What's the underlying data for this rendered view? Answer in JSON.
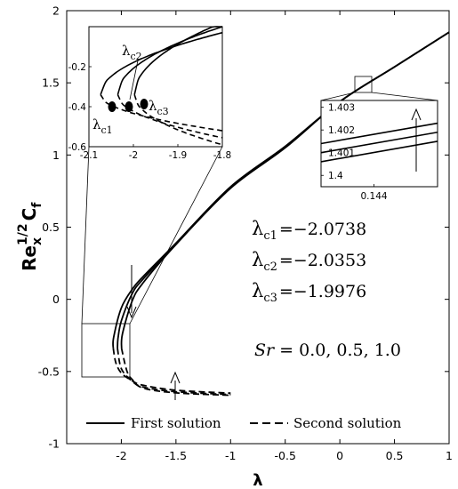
{
  "chart_data": [
    {
      "type": "line",
      "xlabel": "λ",
      "ylabel_base": "Re",
      "ylabel_sub": "x",
      "ylabel_sup": "1/2",
      "ylabel_main": "C",
      "ylabel_main_sub": "f",
      "xlim": [
        -2.5,
        1
      ],
      "ylim": [
        -1,
        2
      ],
      "xticks": [
        -2,
        -1.5,
        -1,
        -0.5,
        0,
        0.5,
        1
      ],
      "xtick_labels": [
        "-2",
        "-1.5",
        "-1",
        "-0.5",
        "0",
        "0.5",
        "1"
      ],
      "yticks": [
        -1,
        -0.5,
        0,
        0.5,
        1,
        1.5,
        2
      ],
      "ytick_labels": [
        "-1",
        "-0.5",
        "0",
        "0.5",
        "1",
        "1.5",
        "2"
      ],
      "grid": false,
      "legend": {
        "placement": "bottom",
        "entries": [
          {
            "label": "First solution",
            "style": "solid"
          },
          {
            "label": "Second solution",
            "style": "dashed"
          }
        ]
      },
      "series": [
        {
          "style": "solid",
          "x": [
            -2.0738,
            -2.07,
            -2.0,
            -1.9,
            -1.8,
            -1.5,
            -1.0,
            -0.5,
            0.0,
            0.5,
            1.0
          ],
          "y": [
            -0.34,
            -0.263,
            -0.06,
            0.07,
            0.158,
            0.39,
            0.78,
            1.06,
            1.37,
            1.61,
            1.85
          ]
        },
        {
          "style": "solid",
          "x": [
            -2.0353,
            -2.03,
            -2.0,
            -1.9,
            -1.8,
            -1.5,
            -1.0,
            -0.5,
            0.0,
            0.5,
            1.0
          ],
          "y": [
            -0.34,
            -0.269,
            -0.15,
            0.04,
            0.141,
            0.385,
            0.775,
            1.055,
            1.37,
            1.61,
            1.85
          ]
        },
        {
          "style": "solid",
          "x": [
            -1.9976,
            -1.99,
            -1.9,
            -1.8,
            -1.5,
            -1.0,
            -0.5,
            0.0,
            0.5,
            1.0
          ],
          "y": [
            -0.34,
            -0.239,
            -0.01,
            0.115,
            0.38,
            0.77,
            1.05,
            1.37,
            1.61,
            1.85
          ]
        },
        {
          "style": "dashed",
          "x": [
            -2.0738,
            -2.05,
            -2.0,
            -1.9,
            -1.8,
            -1.5,
            -1.0
          ],
          "y": [
            -0.34,
            -0.44,
            -0.51,
            -0.565,
            -0.595,
            -0.63,
            -0.65
          ]
        },
        {
          "style": "dashed",
          "x": [
            -2.0353,
            -2.0,
            -1.9,
            -1.8,
            -1.5,
            -1.0
          ],
          "y": [
            -0.34,
            -0.48,
            -0.568,
            -0.608,
            -0.64,
            -0.66
          ]
        },
        {
          "style": "dashed",
          "x": [
            -1.9976,
            -1.95,
            -1.9,
            -1.8,
            -1.5,
            -1.0
          ],
          "y": [
            -0.34,
            -0.495,
            -0.556,
            -0.615,
            -0.648,
            -0.665
          ]
        }
      ],
      "annotations": {
        "lambda_c1": "λ",
        "lambda_c1_sub": "c1",
        "lambda_c1_value": "=−2.0738",
        "lambda_c2": "λ",
        "lambda_c2_sub": "c2",
        "lambda_c2_value": "=−2.0353",
        "lambda_c3": "λ",
        "lambda_c3_sub": "c3",
        "lambda_c3_value": "=−1.9976",
        "sr_symbol": "Sr",
        "sr_values": " = 0.0, 0.5, 1.0"
      }
    },
    {
      "type": "line",
      "name_hint": "inset-left",
      "xlim": [
        -2.1,
        -1.8
      ],
      "ylim": [
        -0.6,
        0
      ],
      "xticks": [
        -2.1,
        -2.0,
        -1.9,
        -1.8
      ],
      "xtick_labels": [
        "-2.1",
        "-2",
        "-1.9",
        "-1.8"
      ],
      "yticks": [
        -0.2,
        -0.4,
        -0.6
      ],
      "ytick_labels": [
        "-0.2",
        "-0.4",
        "-0.6"
      ],
      "labels": {
        "c1": "λ",
        "c1_sub": "c1",
        "c2": "λ",
        "c2_sub": "c2",
        "c3": "λ",
        "c3_sub": "c3"
      }
    },
    {
      "type": "line",
      "name_hint": "inset-right",
      "xlim": [
        0.143,
        0.1452
      ],
      "ylim": [
        1.3995,
        1.4033
      ],
      "xticks": [
        0.144
      ],
      "xtick_labels": [
        "0.144"
      ],
      "yticks": [
        1.4,
        1.401,
        1.402,
        1.403
      ],
      "ytick_labels": [
        "1.4",
        "1.401",
        "1.402",
        "1.403"
      ],
      "series": [
        {
          "x": [
            0.143,
            0.1452
          ],
          "y": [
            1.4014,
            1.4023
          ]
        },
        {
          "x": [
            0.143,
            0.1452
          ],
          "y": [
            1.401,
            1.4019
          ]
        },
        {
          "x": [
            0.143,
            0.1452
          ],
          "y": [
            1.4006,
            1.4015
          ]
        }
      ]
    }
  ]
}
